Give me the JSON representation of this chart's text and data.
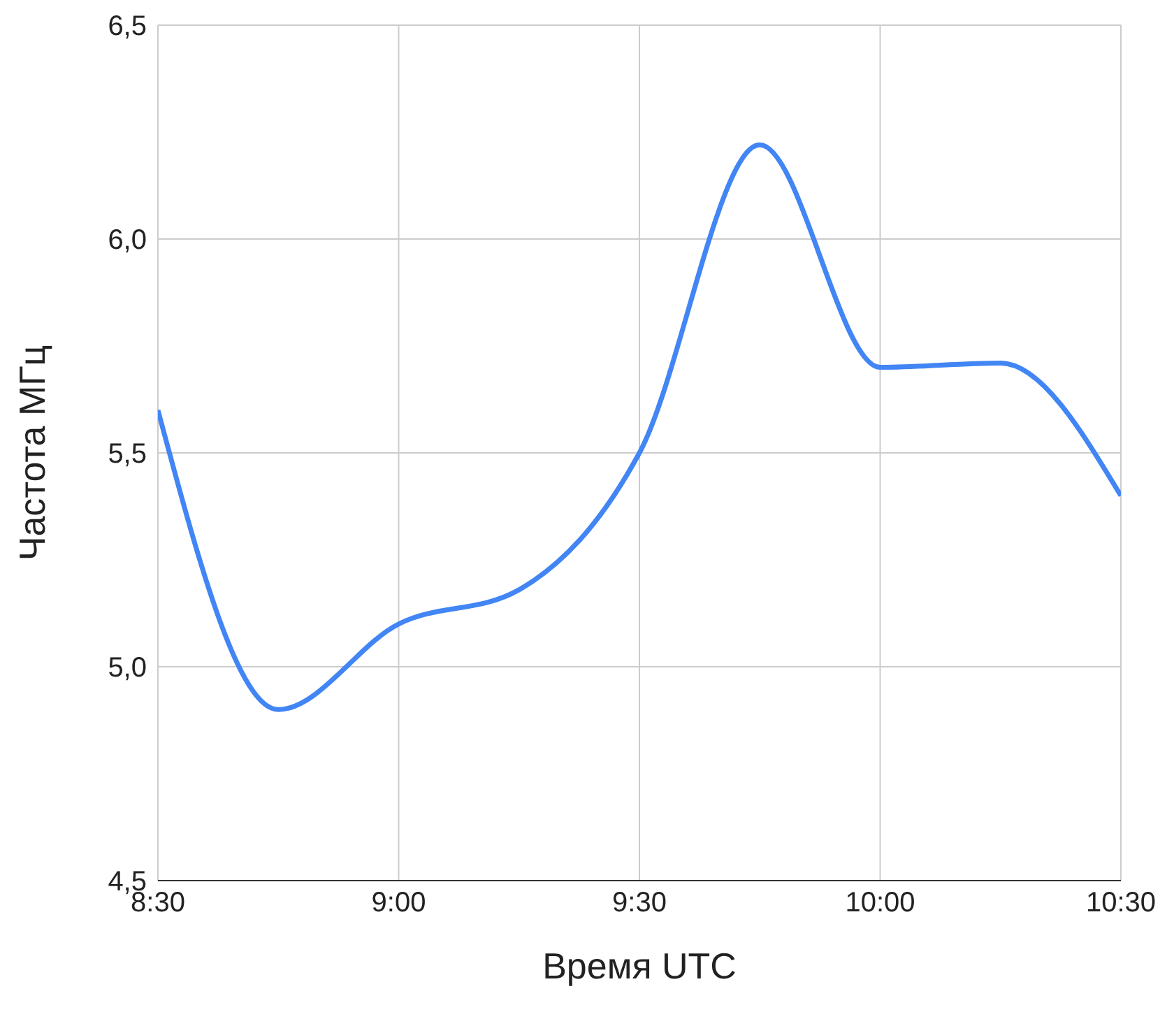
{
  "chart_data": {
    "type": "line",
    "xlabel": "Время UTC",
    "ylabel": "Частота МГц",
    "x": [
      8.5,
      8.75,
      9,
      9.25,
      9.5,
      9.75,
      10,
      10.25,
      10.5
    ],
    "series": [
      {
        "color": "#4285f4",
        "values": [
          5.6,
          4.9,
          5.1,
          5.18,
          5.5,
          6.22,
          5.7,
          5.71,
          5.4
        ]
      }
    ],
    "xlim": [
      8.5,
      10.5
    ],
    "xticks": [
      {
        "value": 8.5,
        "label": "8:30"
      },
      {
        "value": 9,
        "label": "9:00"
      },
      {
        "value": 9.5,
        "label": "9:30"
      },
      {
        "value": 10,
        "label": "10:00"
      },
      {
        "value": 10.5,
        "label": "10:30"
      }
    ],
    "ylim": [
      4.5,
      6.5
    ],
    "yticks": [
      {
        "value": 4.5,
        "label": "4,5"
      },
      {
        "value": 5,
        "label": "5,0"
      },
      {
        "value": 5.5,
        "label": "5,5"
      },
      {
        "value": 6,
        "label": "6,0"
      },
      {
        "value": 6.5,
        "label": "6,5"
      }
    ],
    "grid": true,
    "legend": false,
    "marker": "none",
    "line_style": "solid"
  }
}
